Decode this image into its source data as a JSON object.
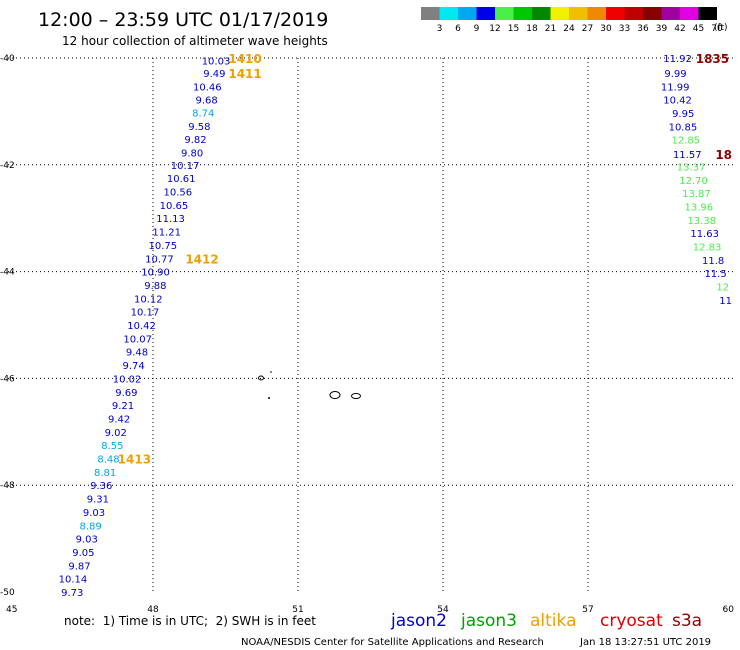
{
  "header": {
    "title": "12:00 – 23:59 UTC 01/17/2019",
    "subtitle": "12 hour collection of altimeter wave heights"
  },
  "scale": {
    "labels": [
      "3",
      "6",
      "9",
      "12",
      "15",
      "18",
      "21",
      "24",
      "27",
      "30",
      "33",
      "36",
      "39",
      "42",
      "45",
      "70"
    ],
    "unit": "(ft)",
    "colors": [
      "#808080",
      "#00e8f0",
      "#00a8f0",
      "#0000e8",
      "#48f048",
      "#00c800",
      "#008800",
      "#f0f000",
      "#f0c000",
      "#f08800",
      "#f00000",
      "#c00000",
      "#880000",
      "#a000a0",
      "#e000e0",
      "#000000"
    ]
  },
  "axes": {
    "x_ticks": [
      "45",
      "48",
      "51",
      "54",
      "57",
      "60"
    ],
    "y_ticks": [
      "-40",
      "-42",
      "-44",
      "-46",
      "-48",
      "-50"
    ]
  },
  "footer": {
    "note": "note:  1) Time is in UTC;  2) SWH is in feet",
    "credit": "NOAA/NESDIS Center for Satellite Applications and Research",
    "timestamp": "Jan 18 13:27:51 UTC 2019"
  },
  "legend": [
    {
      "name": "jason2",
      "color": "#0000d0"
    },
    {
      "name": "jason3",
      "color": "#00a000"
    },
    {
      "name": "altika",
      "color": "#f0a000"
    },
    {
      "name": "cryosat",
      "color": "#e00000"
    },
    {
      "name": "s3a",
      "color": "#900000"
    }
  ],
  "chart_data": {
    "type": "scatter",
    "xlim": [
      45,
      60
    ],
    "ylim": [
      -50,
      -40
    ],
    "units": "ft",
    "track_left": {
      "points": [
        {
          "lon": 49.6,
          "lat": -40.05,
          "v": "10.03",
          "c": "#0000d0"
        },
        {
          "lon": 49.5,
          "lat": -40.28,
          "v": "9.49",
          "c": "#0000d0"
        },
        {
          "lon": 49.42,
          "lat": -40.53,
          "v": "10.46",
          "c": "#0000d0"
        },
        {
          "lon": 49.34,
          "lat": -40.78,
          "v": "9.68",
          "c": "#0000d0"
        },
        {
          "lon": 49.27,
          "lat": -41.02,
          "v": "8.74",
          "c": "#00a8e0"
        },
        {
          "lon": 49.19,
          "lat": -41.27,
          "v": "9.58",
          "c": "#0000d0"
        },
        {
          "lon": 49.11,
          "lat": -41.52,
          "v": "9.82",
          "c": "#0000d0"
        },
        {
          "lon": 49.04,
          "lat": -41.77,
          "v": "9.80",
          "c": "#0000d0"
        },
        {
          "lon": 48.96,
          "lat": -42.0,
          "v": "10.17",
          "c": "#0000d0"
        },
        {
          "lon": 48.88,
          "lat": -42.25,
          "v": "10.61",
          "c": "#0000d0"
        },
        {
          "lon": 48.81,
          "lat": -42.5,
          "v": "10.56",
          "c": "#0000d0"
        },
        {
          "lon": 48.73,
          "lat": -42.75,
          "v": "10.65",
          "c": "#0000d0"
        },
        {
          "lon": 48.66,
          "lat": -43.0,
          "v": "11.13",
          "c": "#0000d0"
        },
        {
          "lon": 48.58,
          "lat": -43.25,
          "v": "11.21",
          "c": "#0000d0"
        },
        {
          "lon": 48.5,
          "lat": -43.5,
          "v": "10.75",
          "c": "#0000d0"
        },
        {
          "lon": 48.43,
          "lat": -43.75,
          "v": "10.77",
          "c": "#0000d0"
        },
        {
          "lon": 48.35,
          "lat": -44.0,
          "v": "10.90",
          "c": "#0000d0"
        },
        {
          "lon": 48.28,
          "lat": -44.25,
          "v": "9.88",
          "c": "#0000d0"
        },
        {
          "lon": 48.2,
          "lat": -44.5,
          "v": "10.12",
          "c": "#0000d0"
        },
        {
          "lon": 48.13,
          "lat": -44.75,
          "v": "10.17",
          "c": "#0000d0"
        },
        {
          "lon": 48.06,
          "lat": -45.0,
          "v": "10.42",
          "c": "#0000d0"
        },
        {
          "lon": 47.98,
          "lat": -45.25,
          "v": "10.07",
          "c": "#0000d0"
        },
        {
          "lon": 47.9,
          "lat": -45.5,
          "v": "9.48",
          "c": "#0000d0"
        },
        {
          "lon": 47.83,
          "lat": -45.75,
          "v": "9.74",
          "c": "#0000d0"
        },
        {
          "lon": 47.76,
          "lat": -46.0,
          "v": "10.02",
          "c": "#0000d0"
        },
        {
          "lon": 47.68,
          "lat": -46.25,
          "v": "9.69",
          "c": "#0000d0"
        },
        {
          "lon": 47.61,
          "lat": -46.5,
          "v": "9.21",
          "c": "#0000d0"
        },
        {
          "lon": 47.53,
          "lat": -46.75,
          "v": "9.42",
          "c": "#0000d0"
        },
        {
          "lon": 47.46,
          "lat": -47.0,
          "v": "9.02",
          "c": "#0000d0"
        },
        {
          "lon": 47.39,
          "lat": -47.25,
          "v": "8.55",
          "c": "#00a8e0"
        },
        {
          "lon": 47.31,
          "lat": -47.5,
          "v": "8.48",
          "c": "#00a8e0"
        },
        {
          "lon": 47.24,
          "lat": -47.75,
          "v": "8.81",
          "c": "#00a8e0"
        },
        {
          "lon": 47.16,
          "lat": -48.0,
          "v": "9.36",
          "c": "#0000d0"
        },
        {
          "lon": 47.09,
          "lat": -48.25,
          "v": "9.31",
          "c": "#0000d0"
        },
        {
          "lon": 47.01,
          "lat": -48.5,
          "v": "9.03",
          "c": "#0000d0"
        },
        {
          "lon": 46.94,
          "lat": -48.75,
          "v": "8.89",
          "c": "#00a8e0"
        },
        {
          "lon": 46.86,
          "lat": -49.0,
          "v": "9.03",
          "c": "#0000d0"
        },
        {
          "lon": 46.79,
          "lat": -49.25,
          "v": "9.05",
          "c": "#0000d0"
        },
        {
          "lon": 46.71,
          "lat": -49.5,
          "v": "9.87",
          "c": "#0000d0"
        },
        {
          "lon": 46.64,
          "lat": -49.75,
          "v": "10.14",
          "c": "#0000d0"
        },
        {
          "lon": 46.56,
          "lat": -50.0,
          "v": "9.73",
          "c": "#0000d0"
        }
      ],
      "times": [
        {
          "lon": 50.25,
          "lat": -40.0,
          "v": "1410"
        },
        {
          "lon": 50.25,
          "lat": -40.28,
          "v": "1411"
        },
        {
          "lon": 49.36,
          "lat": -43.75,
          "v": "1412"
        },
        {
          "lon": 47.96,
          "lat": -47.5,
          "v": "1413"
        }
      ],
      "time_color": "#f0a000"
    },
    "track_right": {
      "points": [
        {
          "lon": 59.15,
          "lat": -40.0,
          "v": "11.92",
          "c": "#0000d0"
        },
        {
          "lon": 59.04,
          "lat": -40.28,
          "v": "9.99",
          "c": "#0000d0"
        },
        {
          "lon": 59.1,
          "lat": -40.53,
          "v": "11.99",
          "c": "#0000d0"
        },
        {
          "lon": 59.15,
          "lat": -40.78,
          "v": "10.42",
          "c": "#0000d0"
        },
        {
          "lon": 59.2,
          "lat": -41.03,
          "v": "9.95",
          "c": "#0000d0"
        },
        {
          "lon": 59.26,
          "lat": -41.28,
          "v": "10.85",
          "c": "#0000d0"
        },
        {
          "lon": 59.32,
          "lat": -41.53,
          "v": "12.85",
          "c": "#48f048"
        },
        {
          "lon": 59.35,
          "lat": -41.8,
          "v": "11.57",
          "c": "#0000d0"
        },
        {
          "lon": 59.43,
          "lat": -42.03,
          "v": "13.37",
          "c": "#48f048"
        },
        {
          "lon": 59.48,
          "lat": -42.28,
          "v": "12.70",
          "c": "#48f048"
        },
        {
          "lon": 59.54,
          "lat": -42.53,
          "v": "13.87",
          "c": "#48f048"
        },
        {
          "lon": 59.59,
          "lat": -42.78,
          "v": "13.96",
          "c": "#48f048"
        },
        {
          "lon": 59.65,
          "lat": -43.03,
          "v": "13.38",
          "c": "#48f048"
        },
        {
          "lon": 59.71,
          "lat": -43.28,
          "v": "11.63",
          "c": "#0000d0"
        },
        {
          "lon": 59.76,
          "lat": -43.53,
          "v": "12.83",
          "c": "#48f048"
        },
        {
          "lon": 59.82,
          "lat": -43.78,
          "v": "11.8",
          "c": "#0000d0"
        },
        {
          "lon": 59.87,
          "lat": -44.03,
          "v": "11.5",
          "c": "#0000d0"
        },
        {
          "lon": 59.92,
          "lat": -44.28,
          "v": "12",
          "c": "#48f048"
        },
        {
          "lon": 59.98,
          "lat": -44.53,
          "v": "11",
          "c": "#0000d0"
        }
      ],
      "times": [
        {
          "lon": 59.92,
          "lat": -40.0,
          "v": "1835"
        },
        {
          "lon": 59.98,
          "lat": -41.8,
          "v": "18"
        }
      ],
      "time_color": "#900000"
    }
  }
}
